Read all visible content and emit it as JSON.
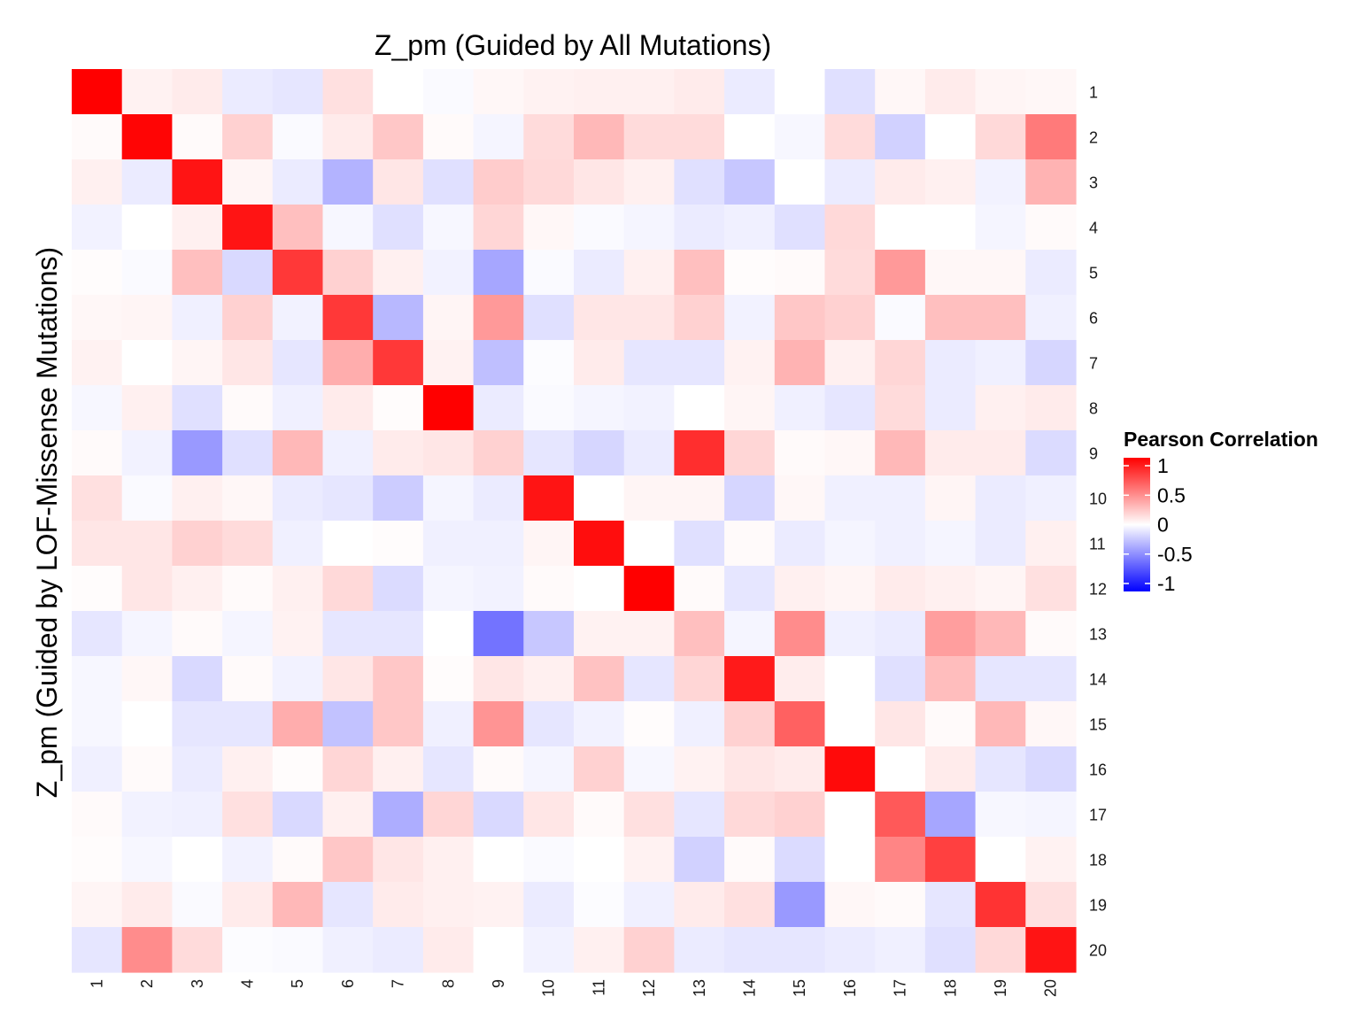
{
  "chart_data": {
    "type": "heatmap",
    "title": "Z_pm (Guided by All Mutations)",
    "xlabel": "",
    "ylabel": "Z_pm (Guided by LOF-Missense Mutations)",
    "x_categories": [
      "1",
      "2",
      "3",
      "4",
      "5",
      "6",
      "7",
      "8",
      "9",
      "10",
      "11",
      "12",
      "13",
      "14",
      "15",
      "16",
      "17",
      "18",
      "19",
      "20"
    ],
    "y_categories": [
      "1",
      "2",
      "3",
      "4",
      "5",
      "6",
      "7",
      "8",
      "9",
      "10",
      "11",
      "12",
      "13",
      "14",
      "15",
      "16",
      "17",
      "18",
      "19",
      "20"
    ],
    "values": [
      [
        1.0,
        0.05,
        0.08,
        -0.08,
        -0.1,
        0.12,
        0.0,
        -0.02,
        0.03,
        0.05,
        0.06,
        0.06,
        0.08,
        -0.08,
        0.0,
        -0.12,
        0.03,
        0.08,
        0.04,
        0.03
      ],
      [
        0.02,
        0.98,
        0.02,
        0.18,
        -0.02,
        0.08,
        0.22,
        0.02,
        -0.04,
        0.14,
        0.28,
        0.14,
        0.14,
        0.0,
        -0.03,
        0.14,
        -0.18,
        0.0,
        0.15,
        0.52
      ],
      [
        0.06,
        -0.08,
        0.92,
        0.04,
        -0.08,
        -0.3,
        0.1,
        -0.12,
        0.2,
        0.15,
        0.1,
        0.06,
        -0.12,
        -0.22,
        0.0,
        -0.08,
        0.08,
        0.06,
        -0.05,
        0.3
      ],
      [
        -0.05,
        0.0,
        0.06,
        0.92,
        0.25,
        -0.03,
        -0.12,
        -0.03,
        0.16,
        0.03,
        -0.02,
        -0.04,
        -0.08,
        -0.06,
        -0.12,
        0.15,
        0.0,
        0.0,
        -0.04,
        0.02
      ],
      [
        0.01,
        -0.02,
        0.25,
        -0.15,
        0.78,
        0.18,
        0.06,
        -0.05,
        -0.35,
        -0.02,
        -0.08,
        0.06,
        0.25,
        0.01,
        0.02,
        0.14,
        0.4,
        0.03,
        0.03,
        -0.08
      ],
      [
        0.03,
        0.04,
        -0.06,
        0.18,
        -0.05,
        0.78,
        -0.28,
        0.04,
        0.4,
        -0.12,
        0.1,
        0.1,
        0.18,
        -0.05,
        0.22,
        0.18,
        -0.02,
        0.25,
        0.25,
        -0.06
      ],
      [
        0.05,
        0.0,
        0.04,
        0.1,
        -0.1,
        0.32,
        0.78,
        0.05,
        -0.25,
        -0.01,
        0.08,
        -0.1,
        -0.1,
        0.05,
        0.3,
        0.06,
        0.16,
        -0.08,
        -0.06,
        -0.16
      ],
      [
        -0.03,
        0.06,
        -0.12,
        0.02,
        -0.06,
        0.08,
        0.01,
        1.0,
        -0.08,
        -0.02,
        -0.04,
        -0.05,
        0.0,
        0.04,
        -0.06,
        -0.1,
        0.14,
        -0.08,
        0.06,
        0.08
      ],
      [
        0.02,
        -0.05,
        -0.4,
        -0.12,
        0.28,
        -0.06,
        0.08,
        0.1,
        0.18,
        -0.1,
        -0.16,
        -0.08,
        0.82,
        0.16,
        0.02,
        0.03,
        0.28,
        0.08,
        0.08,
        -0.14
      ],
      [
        0.12,
        -0.02,
        0.06,
        0.03,
        -0.08,
        -0.1,
        -0.2,
        -0.04,
        -0.08,
        0.92,
        0.0,
        0.04,
        0.04,
        -0.16,
        0.03,
        -0.06,
        -0.06,
        0.04,
        -0.08,
        -0.06
      ],
      [
        0.1,
        0.1,
        0.18,
        0.14,
        -0.06,
        0.0,
        0.01,
        -0.06,
        -0.06,
        0.04,
        0.95,
        0.0,
        -0.12,
        0.02,
        -0.08,
        -0.04,
        -0.06,
        -0.04,
        -0.08,
        0.06
      ],
      [
        0.01,
        0.1,
        0.06,
        0.02,
        0.06,
        0.15,
        -0.14,
        -0.04,
        -0.05,
        0.02,
        0.0,
        1.0,
        0.02,
        -0.1,
        0.06,
        0.04,
        0.08,
        0.06,
        0.04,
        0.12
      ],
      [
        -0.1,
        -0.04,
        0.02,
        -0.04,
        0.05,
        -0.1,
        -0.1,
        0.0,
        -0.55,
        -0.22,
        0.05,
        0.05,
        0.25,
        -0.04,
        0.45,
        -0.06,
        -0.08,
        0.38,
        0.28,
        0.02
      ],
      [
        -0.03,
        0.03,
        -0.15,
        0.02,
        -0.05,
        0.1,
        0.22,
        0.01,
        0.1,
        0.06,
        0.24,
        -0.1,
        0.16,
        0.9,
        0.07,
        0.0,
        -0.12,
        0.26,
        -0.1,
        -0.1
      ],
      [
        -0.03,
        0.0,
        -0.1,
        -0.1,
        0.32,
        -0.24,
        0.22,
        -0.06,
        0.42,
        -0.1,
        -0.05,
        0.01,
        -0.06,
        0.18,
        0.62,
        0.0,
        0.1,
        0.02,
        0.28,
        0.03
      ],
      [
        -0.06,
        0.02,
        -0.08,
        0.06,
        0.01,
        0.16,
        0.06,
        -0.1,
        0.02,
        -0.04,
        0.18,
        -0.03,
        0.05,
        0.1,
        0.08,
        0.96,
        0.0,
        0.08,
        -0.1,
        -0.15
      ],
      [
        0.02,
        -0.05,
        -0.06,
        0.12,
        -0.15,
        0.06,
        -0.32,
        0.16,
        -0.15,
        0.1,
        0.02,
        0.12,
        -0.1,
        0.15,
        0.18,
        0.0,
        0.65,
        -0.35,
        -0.03,
        -0.04
      ],
      [
        0.01,
        -0.03,
        0.0,
        -0.05,
        0.02,
        0.22,
        0.1,
        0.06,
        0.0,
        -0.02,
        0.0,
        0.05,
        -0.18,
        0.02,
        -0.14,
        0.0,
        0.48,
        0.75,
        0.0,
        0.05
      ],
      [
        0.04,
        0.08,
        -0.02,
        0.08,
        0.28,
        -0.1,
        0.08,
        0.06,
        0.05,
        -0.08,
        -0.01,
        -0.06,
        0.08,
        0.12,
        -0.4,
        0.03,
        0.02,
        -0.1,
        0.8,
        0.12
      ],
      [
        -0.1,
        0.45,
        0.14,
        -0.01,
        -0.02,
        -0.06,
        -0.08,
        0.08,
        0.0,
        -0.05,
        0.06,
        0.18,
        -0.08,
        -0.1,
        -0.1,
        -0.08,
        -0.06,
        -0.12,
        0.15,
        0.92
      ]
    ],
    "color_scale": {
      "low": "#0000ff",
      "mid": "#ffffff",
      "high": "#ff0000",
      "limits": [
        -1,
        1
      ]
    },
    "legend": {
      "title": "Pearson Correlation",
      "ticks": [
        "1",
        "0.5",
        "0",
        "-0.5",
        "-1"
      ],
      "placement": "right"
    },
    "grid": false
  }
}
